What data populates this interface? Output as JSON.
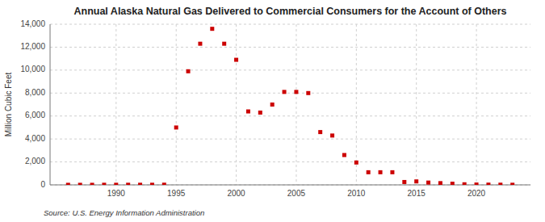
{
  "chart_data": {
    "type": "scatter",
    "title": "Annual Alaska Natural Gas Delivered to Commercial Consumers for the Account of Others",
    "ylabel": "Million Cubic Feet",
    "annotations": [
      "Source: U.S. Energy Information Administration"
    ],
    "x": [
      1986,
      1987,
      1988,
      1989,
      1990,
      1991,
      1992,
      1993,
      1994,
      1995,
      1996,
      1997,
      1998,
      1999,
      2000,
      2001,
      2002,
      2003,
      2004,
      2005,
      2006,
      2007,
      2008,
      2009,
      2010,
      2011,
      2012,
      2013,
      2014,
      2015,
      2016,
      2017,
      2018,
      2019,
      2020,
      2021,
      2022,
      2023
    ],
    "values": [
      5,
      5,
      5,
      10,
      10,
      10,
      10,
      10,
      15,
      5000,
      9900,
      12300,
      13600,
      12300,
      10900,
      6400,
      6300,
      7000,
      8100,
      8100,
      8000,
      4600,
      4300,
      2600,
      1950,
      1100,
      1100,
      1100,
      250,
      300,
      200,
      150,
      100,
      50,
      30,
      20,
      15,
      10
    ],
    "color": "#cc0000",
    "marker": "square",
    "grid": true,
    "xlim": [
      1984.5,
      2024.5
    ],
    "xticks": [
      1990,
      1995,
      2000,
      2005,
      2010,
      2015,
      2020
    ],
    "ylim": [
      0,
      14000
    ],
    "yticks": [
      0,
      {
        "value": 2000,
        "label": "2,000"
      },
      {
        "value": 4000,
        "label": "4,000"
      },
      {
        "value": 6000,
        "label": "6,000"
      },
      {
        "value": 8000,
        "label": "8,000"
      },
      {
        "value": 10000,
        "label": "10,000"
      },
      {
        "value": 12000,
        "label": "12,000"
      },
      {
        "value": 14000,
        "label": "14,000"
      }
    ]
  }
}
